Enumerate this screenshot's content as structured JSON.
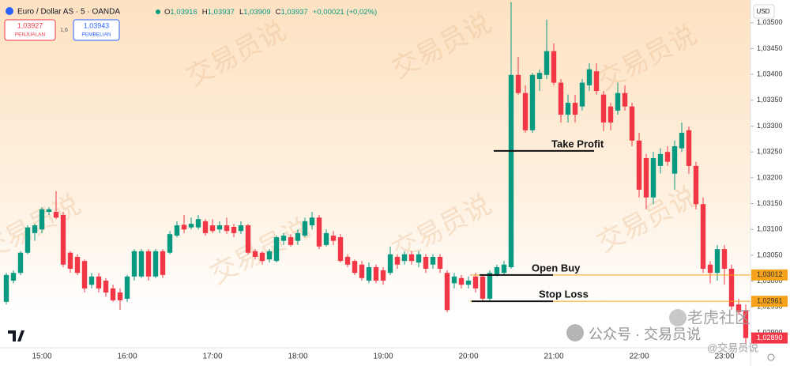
{
  "chart_data": {
    "type": "candlestick",
    "title": "Euro / Dollar AS · 5 · OANDA",
    "ohlc": [
      {
        "label": "O",
        "value": "1,03916"
      },
      {
        "label": "H",
        "value": "1,03937"
      },
      {
        "label": "L",
        "value": "1,03909"
      },
      {
        "label": "C",
        "value": "1,03937"
      }
    ],
    "change": "+0,00021 (+0,02%)",
    "sell": {
      "price": "1,03927",
      "label": "PENJUALAN"
    },
    "spread": "1,6",
    "buy": {
      "price": "1,03943",
      "label": "PEMBELIAN"
    },
    "currency": "USD",
    "up_color": "#089981",
    "down_color": "#f23645",
    "categories": [
      null,
      null,
      null,
      null,
      null,
      "15:00",
      null,
      null,
      null,
      null,
      null,
      null,
      null,
      null,
      null,
      null,
      null,
      "16:00",
      null,
      null,
      null,
      null,
      null,
      null,
      null,
      null,
      null,
      null,
      null,
      "17:00",
      null,
      null,
      null,
      null,
      null,
      null,
      null,
      null,
      null,
      null,
      null,
      "18:00",
      null,
      null,
      null,
      null,
      null,
      null,
      null,
      null,
      null,
      null,
      null,
      "19:00",
      null,
      null,
      null,
      null,
      null,
      null,
      null,
      null,
      null,
      null,
      null,
      "20:00",
      null,
      null,
      null,
      null,
      null,
      null,
      null,
      null,
      null,
      null,
      null,
      "21:00",
      null,
      null,
      null,
      null,
      null,
      null,
      null,
      null,
      null,
      null,
      null,
      "22:00",
      null,
      null,
      null,
      null,
      null,
      null,
      null,
      null,
      null,
      null,
      null,
      "23:00",
      null,
      null,
      null
    ],
    "open": [
      1.0296,
      1.03001,
      1.03016,
      1.03055,
      1.03093,
      1.031,
      1.03134,
      1.03134,
      1.03128,
      1.03055,
      1.03047,
      1.03039,
      1.02993,
      1.03009,
      1.03001,
      1.02986,
      1.02978,
      1.02966,
      1.03009,
      1.03009,
      1.03058,
      1.03009,
      1.03058,
      1.03055,
      1.03088,
      1.03109,
      1.03104,
      1.03104,
      1.03116,
      1.03108,
      1.031,
      1.03108,
      1.03105,
      1.03097,
      1.03108,
      1.03058,
      1.03055,
      1.03042,
      1.03039,
      1.03078,
      1.03085,
      1.03078,
      1.03088,
      1.03108,
      1.03123,
      1.0307,
      1.03088,
      1.03085,
      1.03047,
      1.03039,
      1.03032,
      1.03001,
      1.03027,
      1.03021,
      1.03016,
      1.03047,
      1.03039,
      1.03052,
      1.03036,
      1.03047,
      1.03032,
      1.03047,
      1.03016,
      1.02996,
      1.03006,
      1.02993,
      1.03009,
      1.03009,
      1.02966,
      1.03012,
      1.03016,
      1.03027,
      1.03399,
      1.03364,
      1.03292,
      1.03391,
      1.03399,
      1.03445,
      1.03384,
      1.03322,
      1.03345,
      1.03338,
      1.03379,
      1.03406,
      1.03361,
      1.03338,
      1.0333,
      1.03364,
      1.03338,
      1.03272,
      1.03238,
      1.03162,
      1.03223,
      1.0325,
      1.03208,
      1.03257,
      1.03292,
      1.03223,
      1.03149,
      1.03032,
      1.03016,
      1.03062,
      1.03024,
      1.02955,
      1.02944
    ],
    "high": [
      1.03016,
      1.03021,
      1.03058,
      1.03108,
      1.03111,
      1.03143,
      1.03143,
      1.03174,
      1.03134,
      1.03058,
      1.03052,
      1.03042,
      1.03016,
      1.03016,
      1.03006,
      1.02993,
      1.02986,
      1.03012,
      1.03062,
      1.03062,
      1.03062,
      1.03062,
      1.03062,
      1.03097,
      1.03116,
      1.03128,
      1.03123,
      1.03128,
      1.0312,
      1.0312,
      1.03116,
      1.03123,
      1.03111,
      1.03116,
      1.03111,
      1.03062,
      1.03058,
      1.03062,
      1.03088,
      1.03093,
      1.03091,
      1.031,
      1.03123,
      1.03134,
      1.03128,
      1.031,
      1.03097,
      1.03091,
      1.03052,
      1.03042,
      1.03039,
      1.03036,
      1.03032,
      1.03027,
      1.03067,
      1.03052,
      1.03058,
      1.03058,
      1.03058,
      1.03052,
      1.03052,
      1.03052,
      1.03021,
      1.03016,
      1.03012,
      1.03009,
      1.03016,
      1.03012,
      1.03021,
      1.03032,
      1.03039,
      1.0354,
      1.03434,
      1.03379,
      1.03403,
      1.0341,
      1.03506,
      1.0346,
      1.03391,
      1.03361,
      1.03361,
      1.03391,
      1.03422,
      1.03422,
      1.03368,
      1.03345,
      1.03384,
      1.03379,
      1.03345,
      1.03287,
      1.03246,
      1.0325,
      1.03257,
      1.03261,
      1.03272,
      1.03307,
      1.03299,
      1.03231,
      1.03162,
      1.03039,
      1.0307,
      1.0307,
      1.03032,
      1.02966,
      1.02955
    ],
    "low": [
      1.02955,
      1.02996,
      1.03012,
      1.03052,
      1.03078,
      1.03093,
      1.03128,
      1.0312,
      1.03027,
      1.03016,
      1.03012,
      1.02978,
      1.02986,
      1.02978,
      1.0297,
      1.0296,
      1.02944,
      1.0296,
      1.03001,
      1.03006,
      1.03001,
      1.03006,
      1.03006,
      1.03052,
      1.03085,
      1.03093,
      1.031,
      1.031,
      1.03088,
      1.03093,
      1.03093,
      1.03091,
      1.03085,
      1.03091,
      1.03052,
      1.03042,
      1.03032,
      1.03036,
      1.03036,
      1.0307,
      1.03067,
      1.0307,
      1.03085,
      1.031,
      1.03062,
      1.03067,
      1.0307,
      1.03036,
      1.03027,
      1.03012,
      1.03001,
      1.02996,
      1.02996,
      1.02993,
      1.03012,
      1.03024,
      1.03032,
      1.03032,
      1.03027,
      1.03016,
      1.03024,
      1.03016,
      1.0294,
      1.02986,
      1.02986,
      1.02986,
      1.02978,
      1.0296,
      1.0296,
      1.03009,
      1.03012,
      1.03024,
      1.03361,
      1.03287,
      1.03287,
      1.03368,
      1.03391,
      1.03379,
      1.03307,
      1.03307,
      1.03307,
      1.0333,
      1.03368,
      1.03361,
      1.0329,
      1.03292,
      1.03322,
      1.0333,
      1.03261,
      1.03162,
      1.03139,
      1.03149,
      1.03208,
      1.03223,
      1.03177,
      1.0325,
      1.03208,
      1.03139,
      1.03016,
      1.02996,
      1.03001,
      1.02993,
      1.02944,
      1.02935,
      1.0288
    ],
    "close": [
      1.03012,
      1.03016,
      1.03055,
      1.03104,
      1.03108,
      1.03139,
      1.03139,
      1.03123,
      1.03032,
      1.03024,
      1.03016,
      1.02986,
      1.03009,
      1.02986,
      1.02978,
      1.02963,
      1.02963,
      1.03009,
      1.03058,
      1.03058,
      1.03009,
      1.03058,
      1.03012,
      1.03091,
      1.03108,
      1.031,
      1.03111,
      1.0312,
      1.03093,
      1.03097,
      1.03108,
      1.03097,
      1.03093,
      1.03108,
      1.03055,
      1.03047,
      1.03039,
      1.03058,
      1.03085,
      1.03088,
      1.0307,
      1.03093,
      1.03116,
      1.03123,
      1.03067,
      1.03093,
      1.03078,
      1.03039,
      1.03032,
      1.03016,
      1.03006,
      1.03027,
      1.03001,
      1.03001,
      1.03052,
      1.03032,
      1.03052,
      1.03039,
      1.03052,
      1.03024,
      1.03047,
      1.03024,
      1.02944,
      1.03009,
      1.02993,
      1.03001,
      1.02986,
      1.02966,
      1.03016,
      1.03027,
      1.03032,
      1.03399,
      1.03364,
      1.03292,
      1.03399,
      1.03403,
      1.03445,
      1.03384,
      1.03322,
      1.03345,
      1.03322,
      1.03384,
      1.0341,
      1.03368,
      1.03307,
      1.03307,
      1.03364,
      1.03338,
      1.03272,
      1.03177,
      1.03162,
      1.03238,
      1.03246,
      1.03231,
      1.03261,
      1.03287,
      1.03223,
      1.03149,
      1.03024,
      1.03016,
      1.03062,
      1.03024,
      1.02951,
      1.0294,
      1.0289
    ],
    "ylim": [
      1.02871,
      1.03544
    ],
    "yticks": [
      {
        "value": 1.029,
        "label": "1,02900"
      },
      {
        "value": 1.0295,
        "label": "1,02950"
      },
      {
        "value": 1.03,
        "label": "1,03000"
      },
      {
        "value": 1.0305,
        "label": "1,03050"
      },
      {
        "value": 1.031,
        "label": "1,03100"
      },
      {
        "value": 1.0315,
        "label": "1,03150"
      },
      {
        "value": 1.032,
        "label": "1,03200"
      },
      {
        "value": 1.0325,
        "label": "1,03250"
      },
      {
        "value": 1.033,
        "label": "1,03300"
      },
      {
        "value": 1.0335,
        "label": "1,03350"
      },
      {
        "value": 1.034,
        "label": "1,03400"
      },
      {
        "value": 1.0345,
        "label": "1,03450"
      },
      {
        "value": 1.035,
        "label": "1,03500"
      }
    ],
    "grid": false,
    "position_lines": [
      {
        "value": 1.03012,
        "label": "1,03012",
        "color": "#f7a21b"
      },
      {
        "value": 1.02961,
        "label": "1,02961",
        "color": "#f7a21b"
      }
    ],
    "last_price": {
      "value": 1.0289,
      "label": "1,02890",
      "color": "#f23645"
    },
    "annotations": [
      {
        "text": "Take Profit",
        "value": 1.03252
      },
      {
        "text": "Open Buy",
        "value": 1.03012
      },
      {
        "text": "Stop Loss",
        "value": 1.02961
      }
    ],
    "watermark": "交易员说",
    "footer_watermarks": [
      "老虎社区",
      "公众号 · 交易员说",
      "@交易员说"
    ]
  }
}
